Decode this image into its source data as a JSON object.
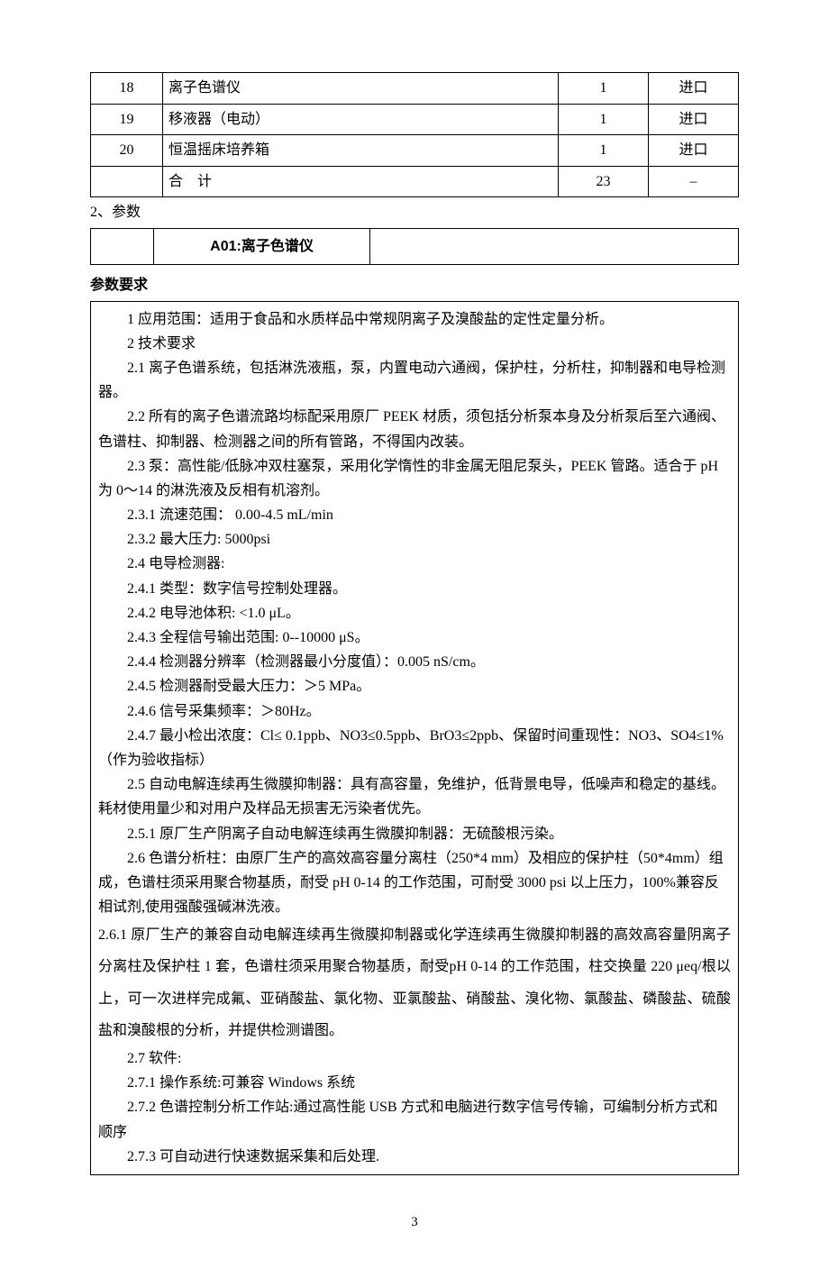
{
  "table": {
    "rows": [
      {
        "n": "18",
        "name": "离子色谱仪",
        "qty": "1",
        "origin": "进口"
      },
      {
        "n": "19",
        "name": "移液器（电动）",
        "qty": "1",
        "origin": "进口"
      },
      {
        "n": "20",
        "name": "恒温摇床培养箱",
        "qty": "1",
        "origin": "进口"
      },
      {
        "n": "",
        "name": "合　计",
        "qty": "23",
        "origin": "–"
      }
    ]
  },
  "section_label": "2、参数",
  "header": {
    "code_title": "A01:离子色谱仪"
  },
  "spec_title": "参数要求",
  "body": {
    "p01": "1 应用范围：适用于食品和水质样品中常规阴离子及溴酸盐的定性定量分析。",
    "p02": "2 技术要求",
    "p03": "2.1 离子色谱系统，包括淋洗液瓶，泵，内置电动六通阀，保护柱，分析柱，抑制器和电导检测器。",
    "p04": "2.2 所有的离子色谱流路均标配采用原厂 PEEK 材质，须包括分析泵本身及分析泵后至六通阀、色谱柱、抑制器、检测器之间的所有管路，不得国内改装。",
    "p05": "2.3 泵：高性能/低脉冲双柱塞泵，采用化学惰性的非金属无阻尼泵头，PEEK 管路。适合于 pH 为 0～14 的淋洗液及反相有机溶剂。",
    "p06": "2.3.1 流速范围： 0.00-4.5 mL/min",
    "p07": "2.3.2 最大压力: 5000psi",
    "p08": "2.4 电导检测器:",
    "p09": "2.4.1 类型：数字信号控制处理器。",
    "p10": "2.4.2 电导池体积: <1.0 μL。",
    "p11": "2.4.3 全程信号输出范围: 0--10000 μS。",
    "p12": "2.4.4 检测器分辨率（检测器最小分度值）：0.005 nS/cm。",
    "p13": "2.4.5 检测器耐受最大压力：＞5 MPa。",
    "p14": "2.4.6 信号采集频率：＞80Hz。",
    "p15": "2.4.7 最小检出浓度：Cl≤ 0.1ppb、NO3≤0.5ppb、BrO3≤2ppb、保留时间重现性：NO3、SO4≤1%（作为验收指标）",
    "p16": "2.5 自动电解连续再生微膜抑制器：具有高容量，免维护，低背景电导，低噪声和稳定的基线。耗材使用量少和对用户及样品无损害无污染者优先。",
    "p17": "2.5.1 原厂生产阴离子自动电解连续再生微膜抑制器：无硫酸根污染。",
    "p18": "2.6 色谱分析柱：由原厂生产的高效高容量分离柱（250*4 mm）及相应的保护柱（50*4mm）组成，色谱柱须采用聚合物基质，耐受 pH 0-14 的工作范围，可耐受 3000 psi 以上压力，100%兼容反相试剂,使用强酸强碱淋洗液。",
    "p19": "2.6.1 原厂生产的兼容自动电解连续再生微膜抑制器或化学连续再生微膜抑制器的高效高容量阴离子分离柱及保护柱 1 套，色谱柱须采用聚合物基质，耐受pH 0-14 的工作范围，柱交换量 220 μeq/根以上，可一次进样完成氟、亚硝酸盐、氯化物、亚氯酸盐、硝酸盐、溴化物、氯酸盐、磷酸盐、硫酸盐和溴酸根的分析，并提供检测谱图。",
    "p20": "2.7 软件:",
    "p21": "2.7.1 操作系统:可兼容 Windows 系统",
    "p22": "2.7.2 色谱控制分析工作站:通过高性能 USB 方式和电脑进行数字信号传输，可编制分析方式和顺序",
    "p23": "2.7.3 可自动进行快速数据采集和后处理."
  },
  "page_number": "3"
}
